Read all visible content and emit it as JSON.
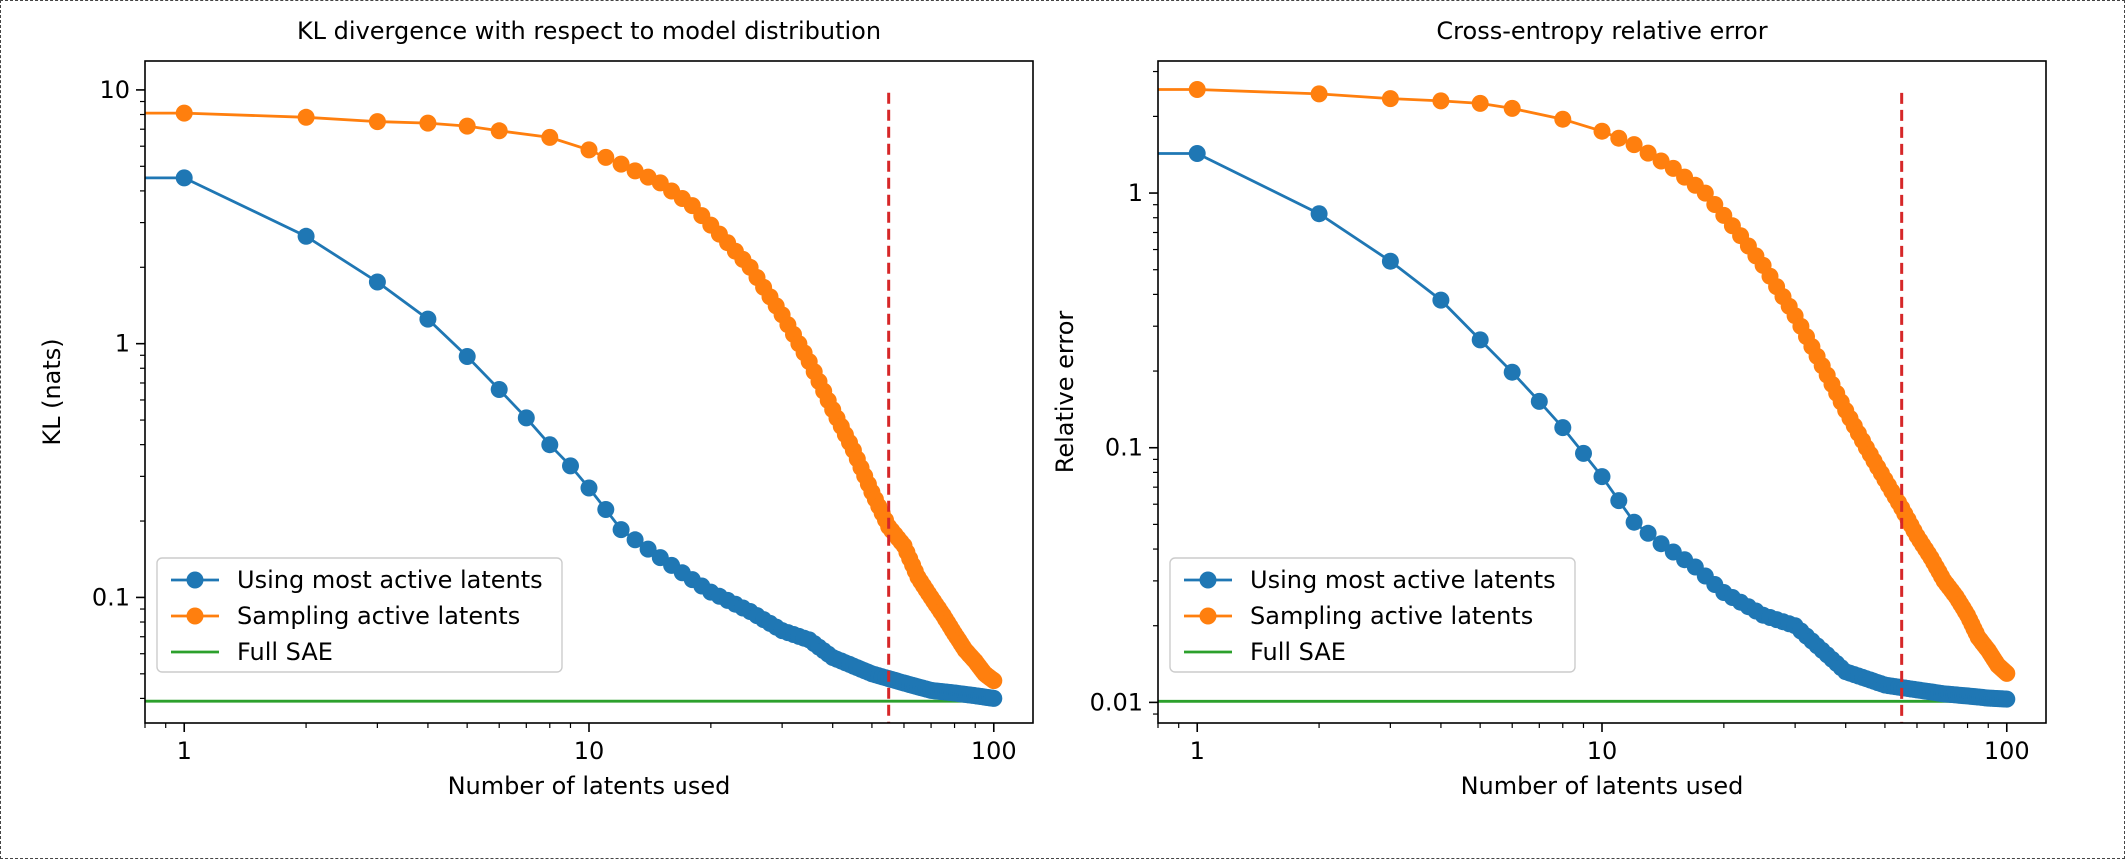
{
  "chart_data": [
    {
      "type": "line",
      "title": "KL divergence with respect to model distribution",
      "xlabel": "Number of latents used",
      "ylabel": "KL (nats)",
      "xscale": "log",
      "yscale": "log",
      "xlim": [
        0.8,
        125
      ],
      "ylim": [
        0.032,
        13
      ],
      "xticks": [
        {
          "value": 1,
          "label": "1"
        },
        {
          "value": 10,
          "label": "10"
        },
        {
          "value": 100,
          "label": "100"
        }
      ],
      "yticks": [
        {
          "value": 0.1,
          "label": "0.1"
        },
        {
          "value": 1,
          "label": "1"
        },
        {
          "value": 10,
          "label": "10"
        }
      ],
      "legend": {
        "position": "lower-left",
        "entries": [
          {
            "label": "Using most active latents",
            "color": "#1f77b4",
            "marker": "circle"
          },
          {
            "label": "Sampling active latents",
            "color": "#ff7f0e",
            "marker": "circle"
          },
          {
            "label": "Full SAE",
            "color": "#2ca02c",
            "marker": "none"
          }
        ]
      },
      "reference_line": {
        "x": 55,
        "color": "#d62728",
        "style": "dashed"
      },
      "series": [
        {
          "name": "Using most active latents",
          "color": "#1f77b4",
          "start": [
            0.8,
            4.5
          ],
          "anchors": [
            [
              1,
              4.5
            ],
            [
              2,
              2.65
            ],
            [
              3,
              1.75
            ],
            [
              4,
              1.25
            ],
            [
              5,
              0.89
            ],
            [
              6,
              0.66
            ],
            [
              7,
              0.51
            ],
            [
              8,
              0.4
            ],
            [
              9,
              0.33
            ],
            [
              10,
              0.27
            ],
            [
              11,
              0.222
            ],
            [
              12,
              0.185
            ],
            [
              14,
              0.155
            ],
            [
              17,
              0.125
            ],
            [
              20,
              0.105
            ],
            [
              25,
              0.088
            ],
            [
              30,
              0.074
            ],
            [
              35,
              0.068
            ],
            [
              40,
              0.058
            ],
            [
              50,
              0.05
            ],
            [
              60,
              0.046
            ],
            [
              70,
              0.043
            ],
            [
              80,
              0.042
            ],
            [
              90,
              0.041
            ],
            [
              100,
              0.04
            ]
          ]
        },
        {
          "name": "Sampling active latents",
          "color": "#ff7f0e",
          "start": [
            0.8,
            8.1
          ],
          "anchors": [
            [
              1,
              8.1
            ],
            [
              2,
              7.8
            ],
            [
              3,
              7.5
            ],
            [
              4,
              7.4
            ],
            [
              5,
              7.2
            ],
            [
              6,
              6.9
            ],
            [
              8,
              6.5
            ],
            [
              10,
              5.8
            ],
            [
              12,
              5.1
            ],
            [
              15,
              4.3
            ],
            [
              18,
              3.5
            ],
            [
              22,
              2.5
            ],
            [
              25,
              2.0
            ],
            [
              30,
              1.3
            ],
            [
              35,
              0.85
            ],
            [
              40,
              0.55
            ],
            [
              45,
              0.38
            ],
            [
              50,
              0.26
            ],
            [
              55,
              0.19
            ],
            [
              60,
              0.16
            ],
            [
              65,
              0.12
            ],
            [
              70,
              0.1
            ],
            [
              75,
              0.085
            ],
            [
              80,
              0.072
            ],
            [
              85,
              0.062
            ],
            [
              90,
              0.056
            ],
            [
              95,
              0.05
            ],
            [
              100,
              0.047
            ]
          ]
        },
        {
          "name": "Full SAE",
          "color": "#2ca02c",
          "x": [
            0.8,
            100
          ],
          "y": [
            0.039,
            0.039
          ]
        }
      ]
    },
    {
      "type": "line",
      "title": "Cross-entropy relative error",
      "xlabel": "Number of latents used",
      "ylabel": "Relative error",
      "xscale": "log",
      "yscale": "log",
      "xlim": [
        0.8,
        125
      ],
      "ylim": [
        0.0083,
        3.3
      ],
      "xticks": [
        {
          "value": 1,
          "label": "1"
        },
        {
          "value": 10,
          "label": "10"
        },
        {
          "value": 100,
          "label": "100"
        }
      ],
      "yticks": [
        {
          "value": 0.01,
          "label": "0.01"
        },
        {
          "value": 0.1,
          "label": "0.1"
        },
        {
          "value": 1,
          "label": "1"
        }
      ],
      "legend": {
        "position": "lower-left",
        "entries": [
          {
            "label": "Using most active latents",
            "color": "#1f77b4",
            "marker": "circle"
          },
          {
            "label": "Sampling active latents",
            "color": "#ff7f0e",
            "marker": "circle"
          },
          {
            "label": "Full SAE",
            "color": "#2ca02c",
            "marker": "none"
          }
        ]
      },
      "reference_line": {
        "x": 55,
        "color": "#d62728",
        "style": "dashed"
      },
      "series": [
        {
          "name": "Using most active latents",
          "color": "#1f77b4",
          "start": [
            0.8,
            1.43
          ],
          "anchors": [
            [
              1,
              1.43
            ],
            [
              2,
              0.83
            ],
            [
              3,
              0.54
            ],
            [
              4,
              0.38
            ],
            [
              5,
              0.265
            ],
            [
              6,
              0.198
            ],
            [
              7,
              0.152
            ],
            [
              8,
              0.12
            ],
            [
              9,
              0.095
            ],
            [
              10,
              0.077
            ],
            [
              11,
              0.062
            ],
            [
              12,
              0.051
            ],
            [
              14,
              0.042
            ],
            [
              17,
              0.034
            ],
            [
              20,
              0.027
            ],
            [
              25,
              0.022
            ],
            [
              30,
              0.02
            ],
            [
              35,
              0.016
            ],
            [
              40,
              0.0132
            ],
            [
              50,
              0.0117
            ],
            [
              60,
              0.0112
            ],
            [
              70,
              0.0108
            ],
            [
              80,
              0.0106
            ],
            [
              90,
              0.0104
            ],
            [
              100,
              0.0103
            ]
          ]
        },
        {
          "name": "Sampling active latents",
          "color": "#ff7f0e",
          "start": [
            0.8,
            2.55
          ],
          "anchors": [
            [
              1,
              2.55
            ],
            [
              2,
              2.45
            ],
            [
              3,
              2.35
            ],
            [
              4,
              2.3
            ],
            [
              5,
              2.25
            ],
            [
              6,
              2.15
            ],
            [
              8,
              1.95
            ],
            [
              10,
              1.75
            ],
            [
              12,
              1.55
            ],
            [
              15,
              1.25
            ],
            [
              18,
              1.0
            ],
            [
              22,
              0.68
            ],
            [
              25,
              0.52
            ],
            [
              30,
              0.33
            ],
            [
              35,
              0.21
            ],
            [
              40,
              0.14
            ],
            [
              45,
              0.1
            ],
            [
              50,
              0.075
            ],
            [
              55,
              0.058
            ],
            [
              60,
              0.045
            ],
            [
              65,
              0.037
            ],
            [
              70,
              0.03
            ],
            [
              75,
              0.026
            ],
            [
              80,
              0.022
            ],
            [
              85,
              0.018
            ],
            [
              90,
              0.016
            ],
            [
              95,
              0.014
            ],
            [
              100,
              0.013
            ]
          ]
        },
        {
          "name": "Full SAE",
          "color": "#2ca02c",
          "x": [
            0.8,
            100
          ],
          "y": [
            0.0101,
            0.0101
          ]
        }
      ]
    }
  ]
}
